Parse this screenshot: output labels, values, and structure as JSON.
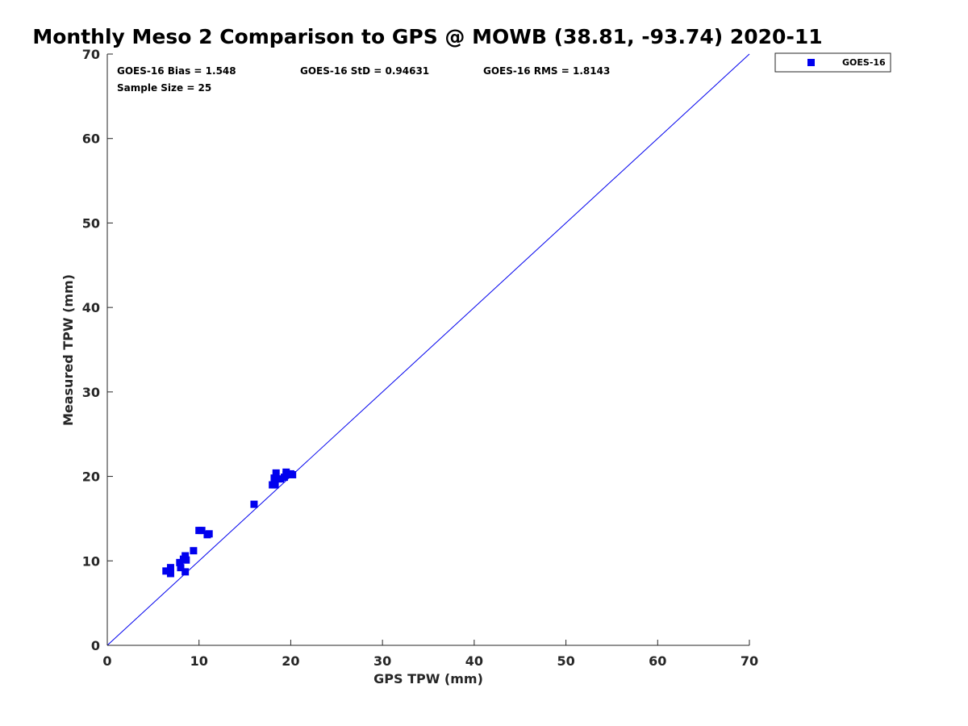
{
  "chart_data": {
    "type": "scatter",
    "title": "Monthly Meso 2 Comparison to GPS @ MOWB (38.81, -93.74) 2020-11",
    "xlabel": "GPS TPW (mm)",
    "ylabel": "Measured TPW (mm)",
    "xlim": [
      0,
      70
    ],
    "ylim": [
      0,
      70
    ],
    "xticks": [
      "0",
      "10",
      "20",
      "30",
      "40",
      "50",
      "60",
      "70"
    ],
    "yticks": [
      "0",
      "10",
      "20",
      "30",
      "40",
      "50",
      "60",
      "70"
    ],
    "grid": false,
    "legend_position": "top-right outside",
    "reference_line": {
      "x": [
        0,
        70
      ],
      "y": [
        0,
        70
      ],
      "color": "#0000ee"
    },
    "stats": {
      "bias": "GOES-16 Bias = 1.548",
      "std": "GOES-16 StD = 0.94631",
      "rms": "GOES-16 RMS = 1.8143",
      "sample_size": "Sample Size = 25"
    },
    "series": [
      {
        "name": "GOES-16",
        "color": "#0000ee",
        "marker": "square",
        "points": [
          [
            6.4,
            8.8
          ],
          [
            6.9,
            9.2
          ],
          [
            6.9,
            8.5
          ],
          [
            7.9,
            9.8
          ],
          [
            8.0,
            9.2
          ],
          [
            8.3,
            10.2
          ],
          [
            8.5,
            10.6
          ],
          [
            8.6,
            10.1
          ],
          [
            8.5,
            8.7
          ],
          [
            9.4,
            11.2
          ],
          [
            10.0,
            13.6
          ],
          [
            10.3,
            13.6
          ],
          [
            10.9,
            13.1
          ],
          [
            11.1,
            13.2
          ],
          [
            16.0,
            16.7
          ],
          [
            18.0,
            19.0
          ],
          [
            18.2,
            19.8
          ],
          [
            18.3,
            19.0
          ],
          [
            18.4,
            20.4
          ],
          [
            18.9,
            19.7
          ],
          [
            19.3,
            19.9
          ],
          [
            19.5,
            20.2
          ],
          [
            19.5,
            20.5
          ],
          [
            20.0,
            20.3
          ],
          [
            20.2,
            20.2
          ]
        ]
      }
    ]
  }
}
